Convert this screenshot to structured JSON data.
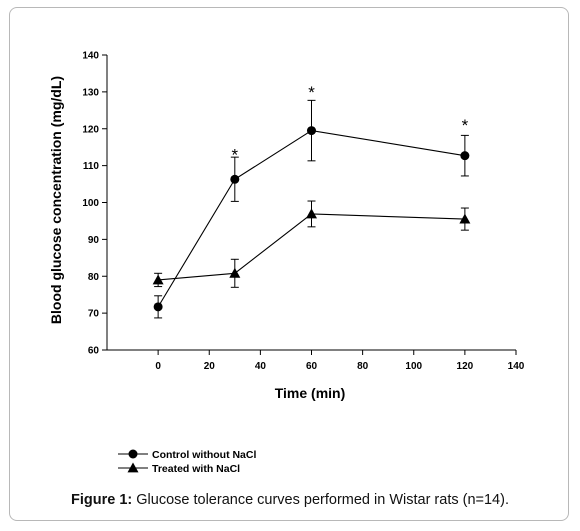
{
  "chart_data": {
    "type": "line",
    "xlabel": "Time (min)",
    "ylabel": "Blood glucose concentration (mg/dL)",
    "xlim": [
      -20,
      140
    ],
    "ylim": [
      60,
      140
    ],
    "x_ticks": [
      0,
      20,
      40,
      60,
      80,
      100,
      120,
      140
    ],
    "y_ticks": [
      60,
      70,
      80,
      90,
      100,
      110,
      120,
      130,
      140
    ],
    "series": [
      {
        "name": "Control without NaCl",
        "marker": "circle",
        "x": [
          0,
          30,
          60,
          120
        ],
        "values": [
          71.7,
          106.3,
          119.5,
          112.7
        ],
        "error": [
          3.0,
          6.0,
          8.2,
          5.5
        ]
      },
      {
        "name": "Treated with NaCl",
        "marker": "triangle",
        "x": [
          0,
          30,
          60,
          120
        ],
        "values": [
          79.0,
          80.8,
          96.9,
          95.5
        ],
        "error": [
          1.8,
          3.8,
          3.5,
          3.0
        ]
      }
    ],
    "annotations": [
      {
        "text": "*",
        "x": 30,
        "y": 113
      },
      {
        "text": "*",
        "x": 60,
        "y": 130
      },
      {
        "text": "*",
        "x": 120,
        "y": 121
      }
    ],
    "legend_position": "bottom-left",
    "grid": false
  },
  "caption": {
    "label": "Figure 1:",
    "text": " Glucose tolerance curves performed in Wistar rats (n=14)."
  },
  "colors": {
    "ink": "#000000",
    "frame": "#b8b8b8"
  }
}
